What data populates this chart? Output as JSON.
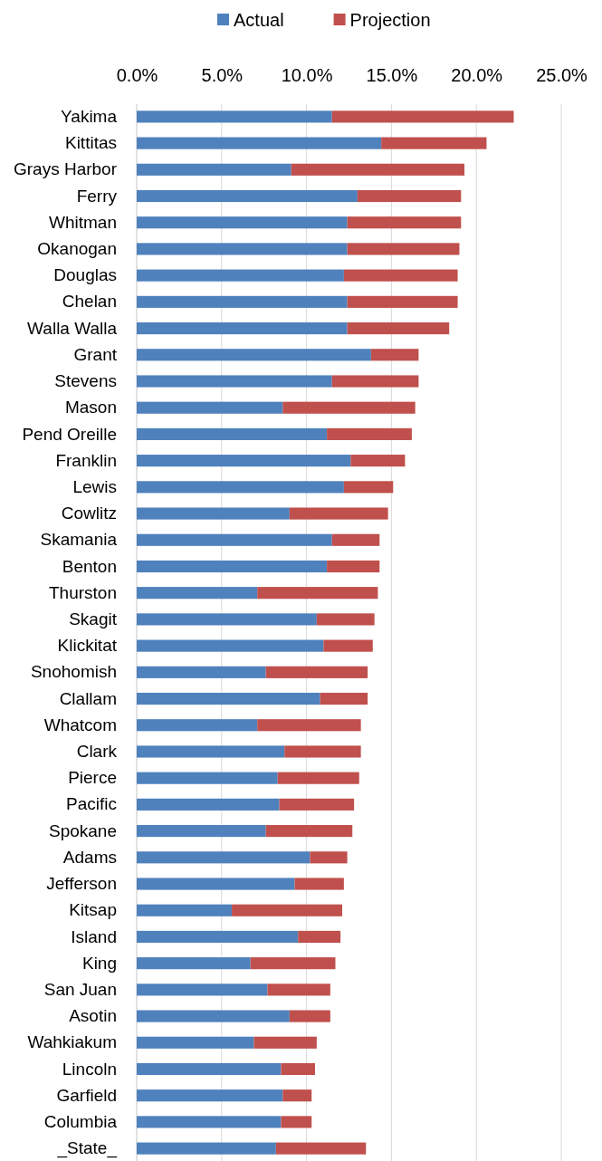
{
  "chart_data": {
    "type": "bar",
    "orientation": "horizontal",
    "stacked": true,
    "legend": "top",
    "grid": "x",
    "categories": [
      "Yakima",
      "Kittitas",
      "Grays Harbor",
      "Ferry",
      "Whitman",
      "Okanogan",
      "Douglas",
      "Chelan",
      "Walla Walla",
      "Grant",
      "Stevens",
      "Mason",
      "Pend Oreille",
      "Franklin",
      "Lewis",
      "Cowlitz",
      "Skamania",
      "Benton",
      "Thurston",
      "Skagit",
      "Klickitat",
      "Snohomish",
      "Clallam",
      "Whatcom",
      "Clark",
      "Pierce",
      "Pacific",
      "Spokane",
      "Adams",
      "Jefferson",
      "Kitsap",
      "Island",
      "King",
      "San Juan",
      "Asotin",
      "Wahkiakum",
      "Lincoln",
      "Garfield",
      "Columbia",
      "_State_"
    ],
    "series": [
      {
        "name": "Actual",
        "color": "#4f81bd",
        "values": [
          11.5,
          14.4,
          9.1,
          13.0,
          12.4,
          12.4,
          12.2,
          12.4,
          12.4,
          13.8,
          11.5,
          8.6,
          11.2,
          12.6,
          12.2,
          9.0,
          11.5,
          11.2,
          7.1,
          10.6,
          11.0,
          7.6,
          10.8,
          7.1,
          8.7,
          8.3,
          8.4,
          7.6,
          10.2,
          9.3,
          5.6,
          9.5,
          6.7,
          7.7,
          9.0,
          6.9,
          8.5,
          8.6,
          8.5,
          8.2
        ]
      },
      {
        "name": "Projection",
        "color": "#c0504d",
        "values": [
          10.7,
          6.2,
          10.2,
          6.1,
          6.7,
          6.6,
          6.7,
          6.5,
          6.0,
          2.8,
          5.1,
          7.8,
          5.0,
          3.2,
          2.9,
          5.8,
          2.8,
          3.1,
          7.1,
          3.4,
          2.9,
          6.0,
          2.8,
          6.1,
          4.5,
          4.8,
          4.4,
          5.1,
          2.2,
          2.9,
          6.5,
          2.5,
          5.0,
          3.7,
          2.4,
          3.7,
          2.0,
          1.7,
          1.8,
          5.3
        ]
      }
    ],
    "xlim": [
      0,
      25
    ],
    "xticks": [
      {
        "value": 0,
        "label": "0.0%"
      },
      {
        "value": 5,
        "label": "5.0%"
      },
      {
        "value": 10,
        "label": "10.0%"
      },
      {
        "value": 15,
        "label": "15.0%"
      },
      {
        "value": 20,
        "label": "20.0%"
      },
      {
        "value": 25,
        "label": "25.0%"
      }
    ]
  }
}
